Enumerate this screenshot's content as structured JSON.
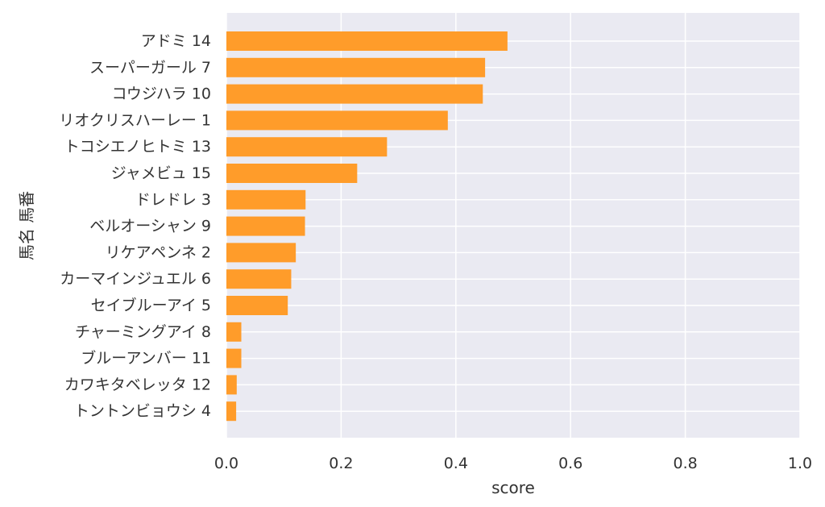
{
  "chart_data": {
    "type": "bar",
    "orientation": "horizontal",
    "categories": [
      "アドミ 14",
      "スーパーガール 7",
      "コウジハラ 10",
      "リオクリスハーレー 1",
      "トコシエノヒトミ 13",
      "ジャメビュ 15",
      "ドレドレ 3",
      "ベルオーシャン 9",
      "リケアペンネ 2",
      "カーマインジュエル 6",
      "セイブルーアイ 5",
      "チャーミングアイ 8",
      "ブルーアンバー 11",
      "カワキタベレッタ 12",
      "トントンビョウシ 4"
    ],
    "values": [
      0.49,
      0.451,
      0.447,
      0.386,
      0.28,
      0.228,
      0.138,
      0.137,
      0.121,
      0.113,
      0.107,
      0.026,
      0.026,
      0.018,
      0.017
    ],
    "xlabel": "score",
    "ylabel": "馬名 馬番",
    "xlim": [
      0,
      1.0
    ],
    "xticks": [
      "0.0",
      "0.2",
      "0.4",
      "0.6",
      "0.8",
      "1.0"
    ],
    "grid": true,
    "bar_color": "#ff9c2a",
    "plot_background": "#eaeaf2",
    "grid_color": "#ffffff"
  }
}
